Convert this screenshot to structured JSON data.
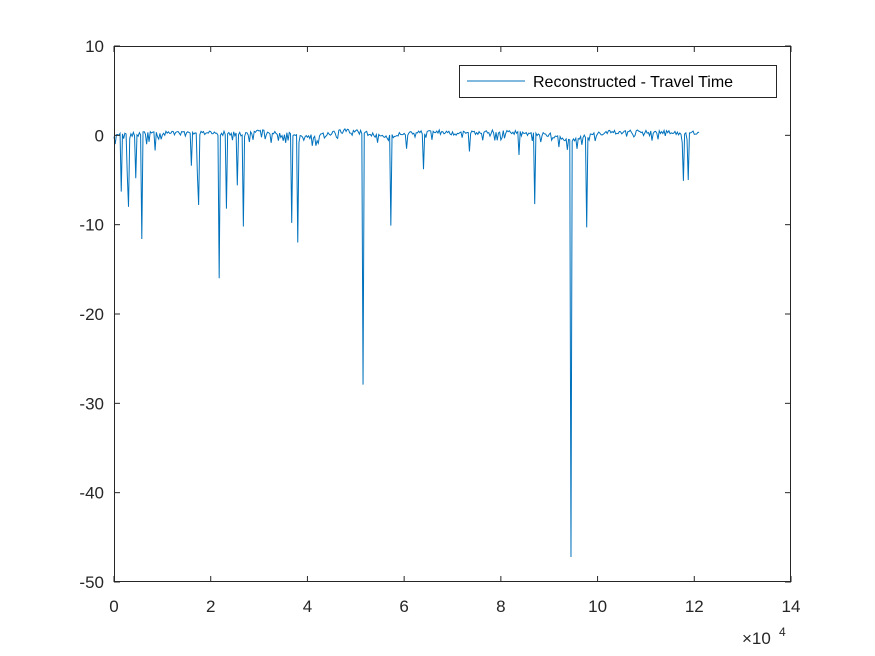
{
  "chart_data": {
    "type": "line",
    "title": "",
    "xlabel": "",
    "ylabel": "",
    "xlim": [
      0,
      140000
    ],
    "ylim": [
      -50,
      10
    ],
    "x_ticks": [
      0,
      20000,
      40000,
      60000,
      80000,
      100000,
      120000,
      140000
    ],
    "x_tick_labels": [
      "0",
      "2",
      "4",
      "6",
      "8",
      "10",
      "12",
      "14"
    ],
    "x_exponent_label": "×10",
    "x_exponent_power": "4",
    "y_ticks": [
      10,
      0,
      -10,
      -20,
      -30,
      -40,
      -50
    ],
    "y_tick_labels": [
      "10",
      "0",
      "-10",
      "-20",
      "-30",
      "-40",
      "-50"
    ],
    "grid": false,
    "box": true,
    "legend": {
      "placement": "top-right",
      "entries": [
        "Reconstructed - Travel Time"
      ]
    },
    "colors": {
      "series": "#0072BD",
      "axes": "#262626"
    },
    "series": [
      {
        "name": "Reconstructed - Travel Time",
        "x_start": 0,
        "x_end": 121000,
        "baseline": [
          [
            0,
            0.1
          ],
          [
            10000,
            0.2
          ],
          [
            20000,
            0.3
          ],
          [
            27000,
            0.1
          ],
          [
            30000,
            0.4
          ],
          [
            36000,
            0.1
          ],
          [
            40000,
            -0.2
          ],
          [
            44000,
            0.2
          ],
          [
            48000,
            0.5
          ],
          [
            52000,
            0.3
          ],
          [
            56000,
            -0.3
          ],
          [
            60000,
            0.2
          ],
          [
            66000,
            0.4
          ],
          [
            72000,
            0.2
          ],
          [
            80000,
            0.4
          ],
          [
            86000,
            0.2
          ],
          [
            90000,
            0.1
          ],
          [
            94000,
            -0.6
          ],
          [
            98000,
            -0.1
          ],
          [
            102000,
            0.3
          ],
          [
            110000,
            0.4
          ],
          [
            121000,
            0.2
          ]
        ],
        "spikes": [
          {
            "x": 1500,
            "y": -6.3
          },
          {
            "x": 2800,
            "y": -4.5
          },
          {
            "x": 3000,
            "y": -8.0
          },
          {
            "x": 4500,
            "y": -4.8
          },
          {
            "x": 5800,
            "y": -11.6
          },
          {
            "x": 8600,
            "y": -1.7
          },
          {
            "x": 16000,
            "y": -3.4
          },
          {
            "x": 17200,
            "y": -4.5
          },
          {
            "x": 17500,
            "y": -7.8
          },
          {
            "x": 21800,
            "y": -16.0
          },
          {
            "x": 23300,
            "y": -8.2
          },
          {
            "x": 25500,
            "y": -5.6
          },
          {
            "x": 26800,
            "y": -10.2
          },
          {
            "x": 36800,
            "y": -9.8
          },
          {
            "x": 38000,
            "y": -12.0
          },
          {
            "x": 51600,
            "y": -27.9
          },
          {
            "x": 57300,
            "y": -10.1
          },
          {
            "x": 60500,
            "y": -1.5
          },
          {
            "x": 64100,
            "y": -3.8
          },
          {
            "x": 73500,
            "y": -1.8
          },
          {
            "x": 83800,
            "y": -2.2
          },
          {
            "x": 87100,
            "y": -7.7
          },
          {
            "x": 94500,
            "y": -47.2
          },
          {
            "x": 97700,
            "y": -10.3
          },
          {
            "x": 117700,
            "y": -5.1
          },
          {
            "x": 118700,
            "y": -5.0
          }
        ]
      }
    ]
  }
}
